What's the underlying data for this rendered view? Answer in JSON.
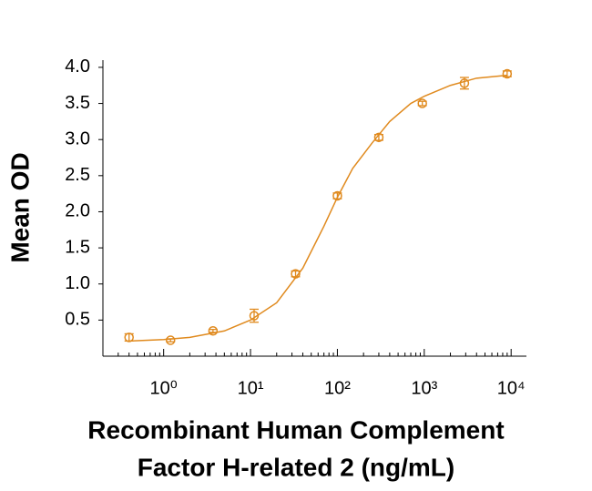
{
  "chart_data": {
    "type": "scatter",
    "y_title": "Mean OD",
    "x_title": [
      "Recombinant Human Complement",
      "Factor H-related 2 (ng/mL)"
    ],
    "x_log": true,
    "color": "#e08a1e",
    "x": [
      0.4,
      1.2,
      3.7,
      11,
      33,
      100,
      300,
      950,
      2900,
      9000
    ],
    "series": [
      {
        "color": "#e08a1e",
        "values": [
          0.26,
          0.22,
          0.35,
          0.56,
          1.14,
          2.22,
          3.03,
          3.5,
          3.78,
          3.91
        ],
        "errors": [
          0.05,
          0.02,
          0.02,
          0.09,
          0.04,
          0.04,
          0.04,
          0.03,
          0.08,
          0.04
        ]
      }
    ],
    "curve": {
      "x": [
        0.4,
        1,
        2,
        5,
        10,
        20,
        40,
        70,
        100,
        150,
        250,
        400,
        700,
        1000,
        2000,
        4000,
        9000
      ],
      "y": [
        0.21,
        0.23,
        0.26,
        0.35,
        0.5,
        0.74,
        1.22,
        1.8,
        2.2,
        2.6,
        2.95,
        3.25,
        3.5,
        3.6,
        3.75,
        3.85,
        3.89
      ]
    },
    "xlim": [
      0.2,
      15000
    ],
    "ylim": [
      0,
      4.1
    ],
    "xticks": [
      {
        "value": 1,
        "label": "10⁰"
      },
      {
        "value": 10,
        "label": "10¹"
      },
      {
        "value": 100,
        "label": "10²"
      },
      {
        "value": 1000,
        "label": "10³"
      },
      {
        "value": 10000,
        "label": "10⁴"
      }
    ],
    "xminorticks": [
      0.3,
      0.4,
      0.5,
      0.6,
      0.7,
      0.8,
      0.9,
      2,
      3,
      4,
      5,
      6,
      7,
      8,
      9,
      20,
      30,
      40,
      50,
      60,
      70,
      80,
      90,
      200,
      300,
      400,
      500,
      600,
      700,
      800,
      900,
      2000,
      3000,
      4000,
      5000,
      6000,
      7000,
      8000,
      9000
    ],
    "yticks": [
      0.5,
      {
        "value": 1,
        "label": "1.0"
      },
      1.5,
      {
        "value": 2,
        "label": "2.0"
      },
      2.5,
      {
        "value": 3,
        "label": "3.0"
      },
      3.5,
      {
        "value": 4,
        "label": "4.0"
      }
    ]
  }
}
